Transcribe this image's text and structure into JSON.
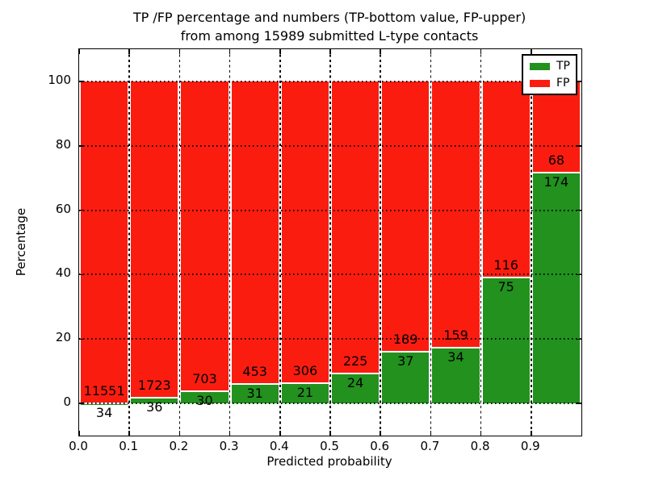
{
  "title": {
    "line1": "TP /FP percentage and numbers (TP-bottom value, FP-upper)",
    "line2": "from among 15989 submitted L-type contacts"
  },
  "axes": {
    "xlabel": "Predicted probability",
    "ylabel": "Percentage",
    "x_ticks": [
      "0.0",
      "0.1",
      "0.2",
      "0.3",
      "0.4",
      "0.5",
      "0.6",
      "0.7",
      "0.8",
      "0.9"
    ],
    "y_ticks": [
      "0",
      "20",
      "40",
      "60",
      "80",
      "100"
    ]
  },
  "legend": {
    "items": [
      {
        "label": "TP",
        "color": "#22911e"
      },
      {
        "label": "FP",
        "color": "#fb1c10"
      }
    ]
  },
  "chart_data": {
    "type": "bar",
    "stacked": true,
    "title": "TP /FP percentage and numbers (TP-bottom value, FP-upper) from among 15989 submitted L-type contacts",
    "xlabel": "Predicted probability",
    "ylabel": "Percentage",
    "total_submitted": 15989,
    "bin_starts": [
      0.0,
      0.1,
      0.2,
      0.3,
      0.4,
      0.5,
      0.6,
      0.7,
      0.8,
      0.9
    ],
    "bin_width": 0.1,
    "series": [
      {
        "name": "TP",
        "stack_position": "bottom",
        "color": "#22911e",
        "counts": [
          34,
          36,
          30,
          31,
          21,
          24,
          37,
          34,
          75,
          174
        ]
      },
      {
        "name": "FP",
        "stack_position": "top",
        "color": "#fb1c10",
        "counts": [
          11551,
          1723,
          703,
          453,
          306,
          225,
          189,
          159,
          116,
          68
        ]
      }
    ],
    "tp_percent": [
      0.29,
      2.05,
      4.09,
      6.4,
      6.42,
      9.64,
      16.37,
      17.62,
      39.27,
      71.9
    ],
    "ylim": [
      -10,
      110
    ],
    "xlim": [
      0,
      1
    ],
    "grid": true,
    "grid_style": "dotted",
    "legend_position": "upper right"
  }
}
